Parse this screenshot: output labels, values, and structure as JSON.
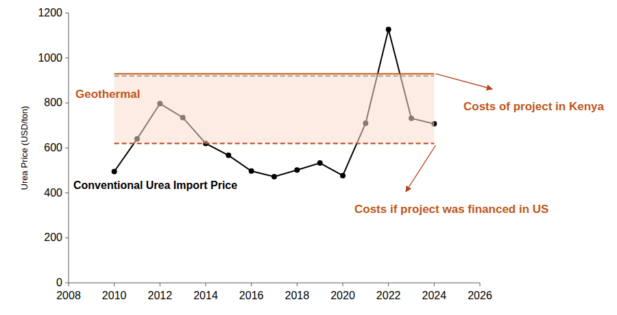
{
  "chart_data": {
    "type": "line",
    "y_label": "Urea Price (USD/ton)",
    "x": [
      2010,
      2011,
      2012,
      2013,
      2014,
      2015,
      2016,
      2017,
      2018,
      2019,
      2020,
      2021,
      2022,
      2023,
      2024
    ],
    "series": [
      {
        "name": "Conventional Urea Import Price",
        "color": "#000000",
        "marker": "circle",
        "line_style": "solid",
        "values": [
          495,
          640,
          797,
          735,
          620,
          567,
          497,
          472,
          502,
          533,
          477,
          710,
          1127,
          732,
          707
        ]
      }
    ],
    "band": {
      "label": "Geothermal",
      "range": [
        620,
        930
      ],
      "x": [
        2010,
        2024
      ],
      "color": "#f9dccb"
    },
    "reference_lines": [
      {
        "label": "Costs of project in Kenya",
        "value": 930,
        "color": "#c55a11",
        "line_style": "solid"
      },
      {
        "value": 920,
        "color": "#a6a6a6",
        "line_style": "dashed"
      },
      {
        "label": "Costs if project was financed in US",
        "value": 620,
        "color": "#b8431f",
        "line_style": "dashed"
      }
    ],
    "xlim": [
      2008,
      2026
    ],
    "ylim": [
      0,
      1200
    ],
    "xticks": [
      2008,
      2010,
      2012,
      2014,
      2016,
      2018,
      2020,
      2022,
      2024,
      2026
    ],
    "yticks": [
      0,
      200,
      400,
      600,
      800,
      1000,
      1200
    ],
    "grid": false
  }
}
